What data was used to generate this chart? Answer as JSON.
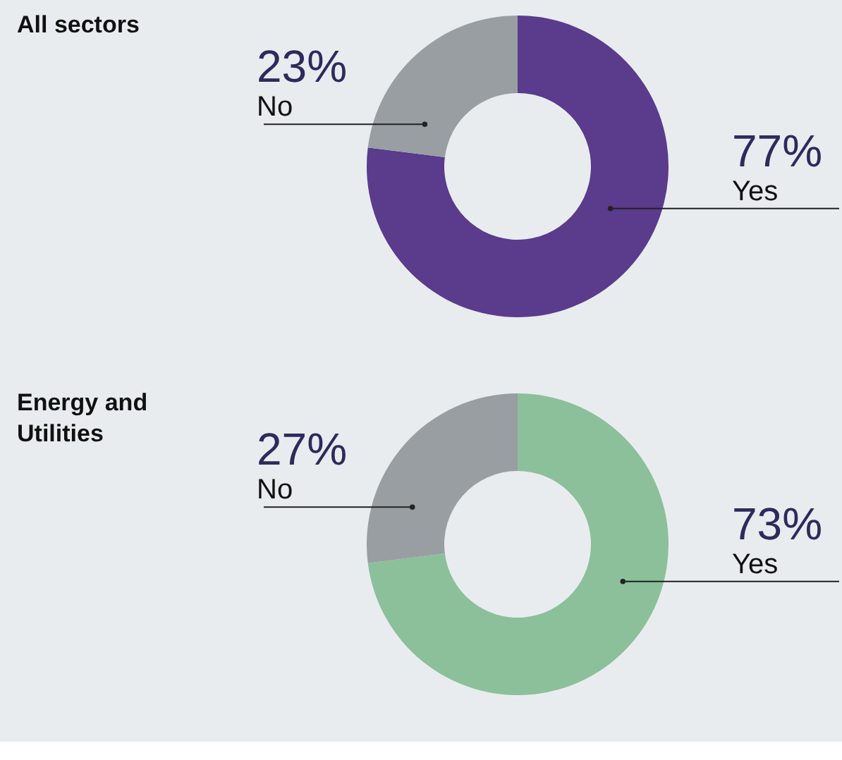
{
  "chart_data": [
    {
      "type": "donut",
      "title": "All sectors",
      "categories": [
        "Yes",
        "No"
      ],
      "values": [
        77,
        23
      ],
      "value_labels": [
        "77%",
        "23%"
      ],
      "colors": [
        "#5a3b8c",
        "#989ea2"
      ],
      "legend": false
    },
    {
      "type": "donut",
      "title": "Energy and Utilities",
      "categories": [
        "Yes",
        "No"
      ],
      "values": [
        73,
        27
      ],
      "value_labels": [
        "73%",
        "27%"
      ],
      "colors": [
        "#8cc09a",
        "#989ea2"
      ],
      "legend": false
    }
  ]
}
